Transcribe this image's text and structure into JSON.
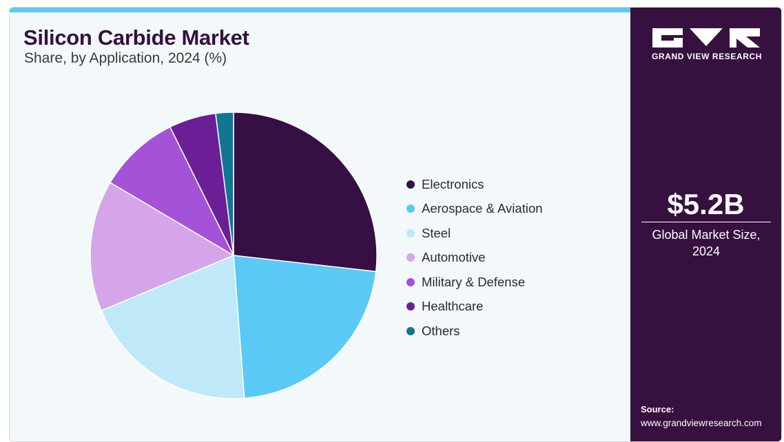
{
  "header": {
    "title": "Silicon Carbide Market",
    "subtitle": "Share, by Application, 2024 (%)"
  },
  "brand": {
    "name": "GRAND VIEW RESEARCH",
    "logo": "gvr-logo-icon"
  },
  "summary": {
    "value": "$5.2B",
    "label": "Global Market Size, 2024"
  },
  "source": {
    "label": "Source:",
    "url": "www.grandviewresearch.com"
  },
  "colors": {
    "accent_bar": "#5bc8f5",
    "side_panel": "#36103f",
    "title": "#33103f"
  },
  "chart_data": {
    "type": "pie",
    "start_angle_deg": 0,
    "direction": "clockwise",
    "categories": [
      "Electronics",
      "Aerospace & Aviation",
      "Steel",
      "Automotive",
      "Military & Defense",
      "Healthcare",
      "Others"
    ],
    "values": [
      26.8,
      22.0,
      19.9,
      14.8,
      9.2,
      5.3,
      2.0
    ],
    "colors": [
      "#360f45",
      "#5bc9f6",
      "#bfe8f8",
      "#d4a6e9",
      "#a452d7",
      "#6a1f97",
      "#127592"
    ],
    "legend_position": "right"
  }
}
